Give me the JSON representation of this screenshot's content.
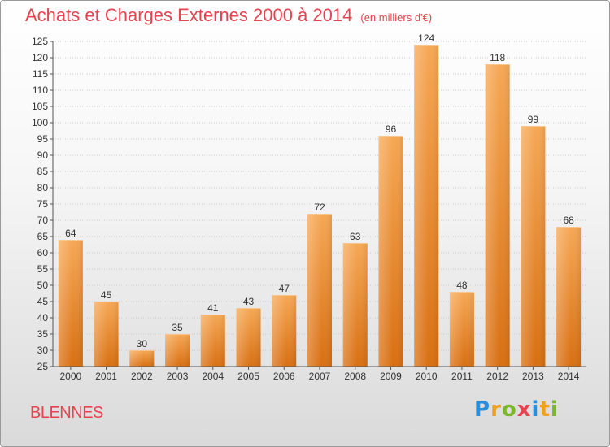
{
  "title": "Achats et Charges Externes 2000 à 2014",
  "subtitle": "(en milliers d'€)",
  "commune": "BLENNES",
  "logo": {
    "letters": [
      "P",
      "r",
      "o",
      "x",
      "i",
      "t",
      "i"
    ],
    "colors": [
      "#2a8fd8",
      "#f0a020",
      "#7ab82a",
      "#e8424f",
      "#2a8fd8",
      "#f0a020",
      "#7ab82a"
    ]
  },
  "chart_data": {
    "type": "bar",
    "categories": [
      "2000",
      "2001",
      "2002",
      "2003",
      "2004",
      "2005",
      "2006",
      "2007",
      "2008",
      "2009",
      "2010",
      "2011",
      "2012",
      "2013",
      "2014"
    ],
    "values": [
      64,
      45,
      30,
      35,
      41,
      43,
      47,
      72,
      63,
      96,
      124,
      48,
      118,
      99,
      68
    ],
    "ylim": [
      25,
      125
    ],
    "yticks": [
      25,
      30,
      35,
      40,
      45,
      50,
      55,
      60,
      65,
      70,
      75,
      80,
      85,
      90,
      95,
      100,
      105,
      110,
      115,
      120,
      125
    ],
    "grid": true,
    "bar_color": "#f08a24",
    "data_labels": true
  }
}
